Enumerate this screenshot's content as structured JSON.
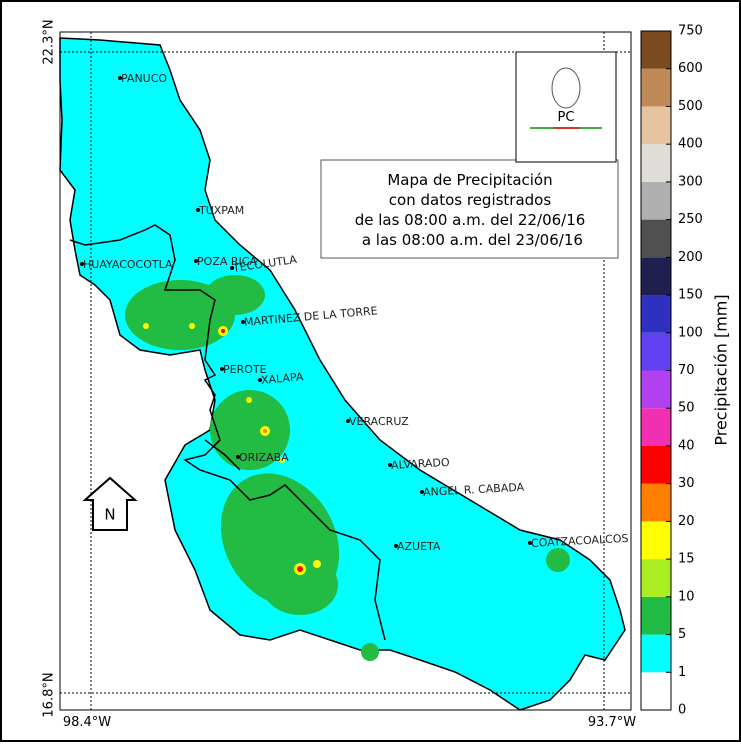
{
  "map": {
    "title": [
      "Mapa de Precipitación",
      "con datos registrados",
      "de las 08:00 a.m. del 22/06/16",
      " a las 08:00 a.m. del 23/06/16"
    ],
    "lat_labels": [
      "22.3°N",
      "16.8°N"
    ],
    "lon_labels": [
      "98.4°W",
      "93.7°W"
    ],
    "cities": [
      "PANUCO",
      "TUXPAM",
      "HUAYACOCOTLA",
      "POZA RICA",
      "TECOLUTLA",
      "MARTINEZ DE LA TORRE",
      "PEROTE",
      "XALAPA",
      "VERACRUZ",
      "ORIZABA",
      "ALVARADO",
      "ANGEL R. CABADA",
      "AZUETA",
      "COATZACOALCOS"
    ],
    "north": "N",
    "logo": "PC"
  },
  "colorbar": {
    "label": "Precipitación [mm]",
    "ticks": [
      0,
      1,
      5,
      10,
      15,
      20,
      30,
      40,
      50,
      70,
      100,
      150,
      200,
      250,
      300,
      400,
      500,
      600,
      750
    ],
    "colors": [
      "#ffffff",
      "#00ffff",
      "#22bb44",
      "#aaee22",
      "#ffff00",
      "#ff8000",
      "#ff0000",
      "#f030b0",
      "#b040f0",
      "#6040f0",
      "#3030c0",
      "#202050",
      "#505050",
      "#b0b0b0",
      "#e0dcd8",
      "#e6c4a0",
      "#c08a58",
      "#7b4a1f"
    ]
  }
}
